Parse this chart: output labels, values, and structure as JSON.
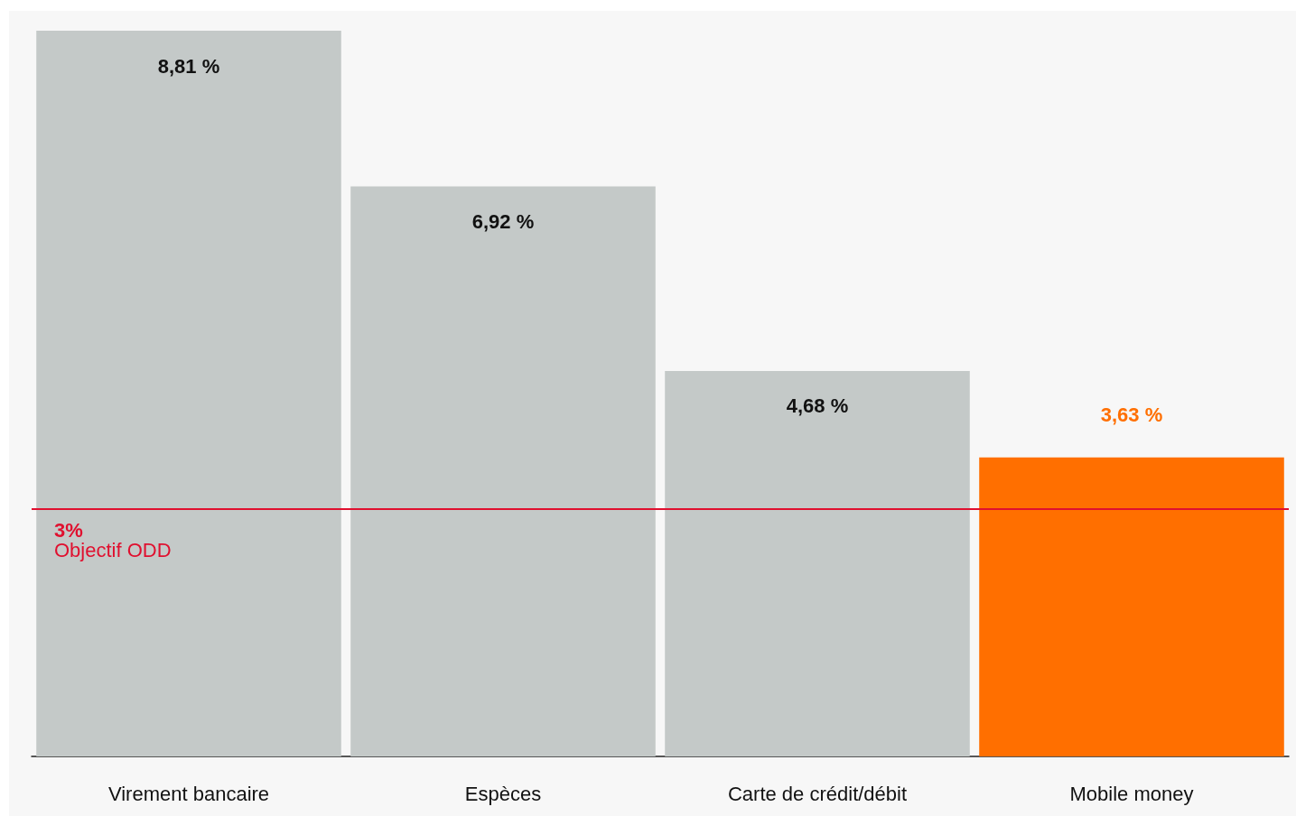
{
  "chart_data": {
    "type": "bar",
    "categories": [
      "Virement bancaire",
      "Espèces",
      "Carte de crédit/débit",
      "Mobile money"
    ],
    "values": [
      8.81,
      6.92,
      4.68,
      3.63
    ],
    "colors": [
      "#c4c9c8",
      "#c4c9c8",
      "#c4c9c8",
      "#ff6f00"
    ],
    "value_labels": [
      "8,81 %",
      "6,92 %",
      "4,68 %",
      "3,63 %"
    ],
    "ref_lines": [
      {
        "axis": "y",
        "value": 3,
        "label": "3%\nObjectif ODD",
        "color": "#e0102f",
        "line_style": "solid"
      }
    ]
  }
}
